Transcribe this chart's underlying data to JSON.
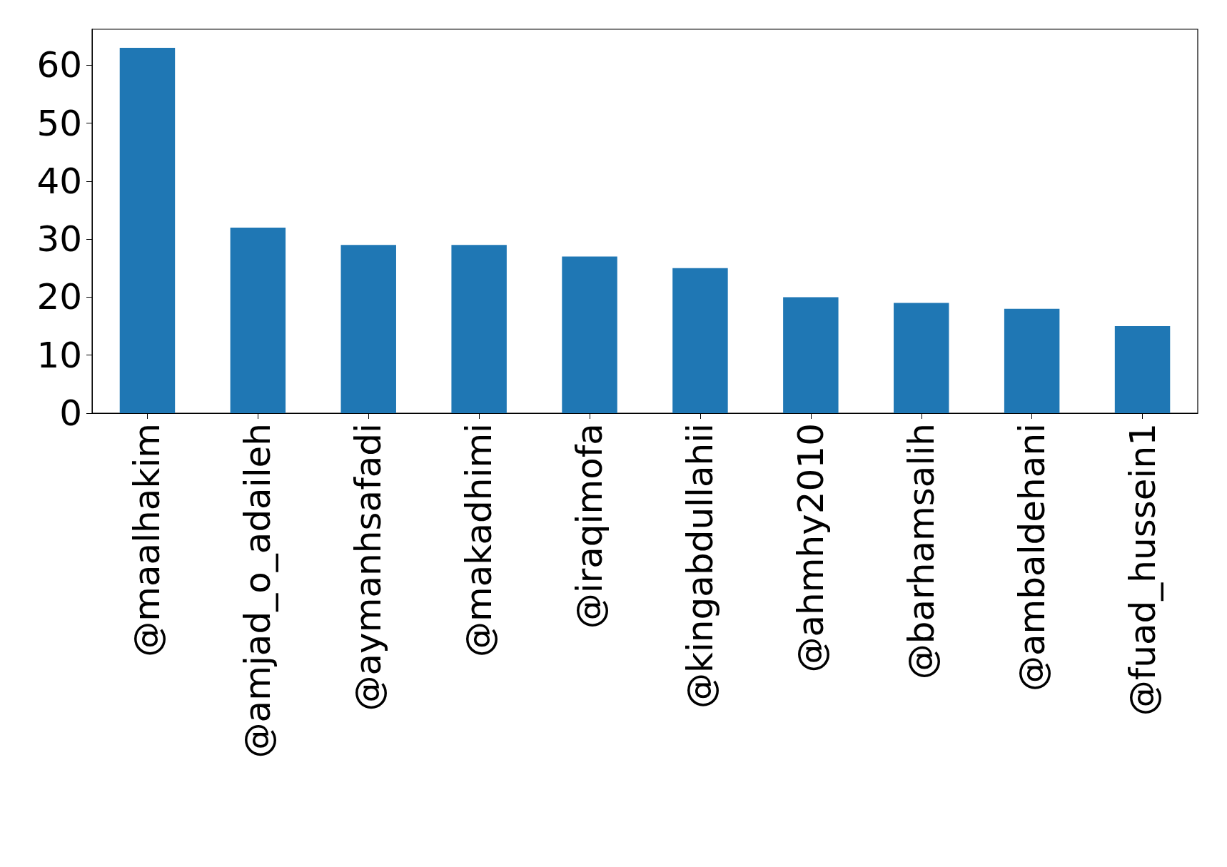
{
  "chart_data": {
    "type": "bar",
    "categories": [
      "@maalhakim",
      "@amjad_o_adaileh",
      "@aymanhsafadi",
      "@makadhimi",
      "@iraqimofa",
      "@kingabdullahii",
      "@ahmhy2010",
      "@barhamsalih",
      "@ambaldehani",
      "@fuad_hussein1"
    ],
    "values": [
      63,
      32,
      29,
      29,
      27,
      25,
      20,
      19,
      18,
      15
    ],
    "color": "#1f77b4",
    "ylim": [
      0,
      66.2
    ],
    "yticks": [
      0,
      10,
      20,
      30,
      40,
      50,
      60
    ],
    "grid": false
  }
}
